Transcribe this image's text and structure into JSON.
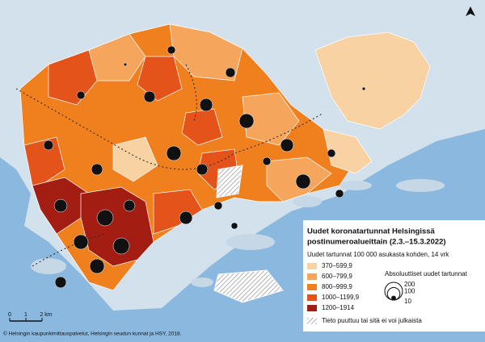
{
  "legend": {
    "title": [
      "Uudet koronatartunnat Helsingissä",
      "postinumeroalueittain (2.3.–15.3.2022)"
    ],
    "subtitle": "Uudet tartunnat 100 000 asukasta kohden, 14 vrk",
    "classes": [
      {
        "label": "370–599,9",
        "color": "#f9d2a3"
      },
      {
        "label": "600–799,9",
        "color": "#f5a55c"
      },
      {
        "label": "800–999,9",
        "color": "#f07f1e"
      },
      {
        "label": "1000–1199,9",
        "color": "#e4531a"
      },
      {
        "label": "1200–1914",
        "color": "#a31d13"
      }
    ],
    "missing": "Tieto puuttuu tai sitä ei voi julkaista"
  },
  "size_legend": {
    "title": "Absoluuttiset uudet tartunnat",
    "values": [
      200,
      100,
      10
    ]
  },
  "scale_bar": [
    "0",
    "1",
    "2 km"
  ],
  "credit": "© Helsingin kaupunkimittauspalvelut, Helsingin seudun kunnat ja HSY, 2018."
}
